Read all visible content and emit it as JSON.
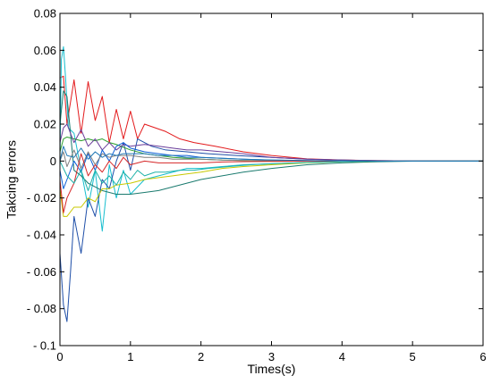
{
  "chart_data": {
    "type": "line",
    "title": "",
    "xlabel": "Times(s)",
    "ylabel": "Takcing errors",
    "xlim": [
      0,
      6
    ],
    "ylim": [
      -0.1,
      0.08
    ],
    "xticks": [
      0,
      1,
      2,
      3,
      4,
      5,
      6
    ],
    "xtick_labels": [
      "0",
      "1",
      "2",
      "3",
      "4",
      "5",
      "6"
    ],
    "yticks": [
      0.08,
      0.06,
      0.04,
      0.02,
      0,
      -0.02,
      -0.04,
      -0.06,
      -0.08,
      -0.1
    ],
    "ytick_labels": [
      "0.08",
      "0.06",
      "0.04",
      "0.02",
      "0",
      "- 0.02",
      "- 0.04",
      "- 0.06",
      "- 0.08",
      "- 0.1"
    ],
    "grid": false,
    "legend": "none",
    "series": [
      {
        "color": "#e31a1c",
        "x": [
          0,
          0.05,
          0.1,
          0.2,
          0.3,
          0.4,
          0.5,
          0.6,
          0.7,
          0.8,
          0.9,
          1.0,
          1.1,
          1.2,
          1.35,
          1.5,
          1.7,
          1.9,
          2.2,
          2.6,
          3.0,
          3.5,
          4.0,
          4.5,
          5.0,
          6.0
        ],
        "y": [
          0.045,
          0.046,
          0.02,
          0.044,
          0.015,
          0.043,
          0.022,
          0.035,
          0.01,
          0.028,
          0.012,
          0.027,
          0.012,
          0.02,
          0.018,
          0.016,
          0.012,
          0.01,
          0.008,
          0.005,
          0.003,
          0.0012,
          0.0006,
          0.0002,
          0.0001,
          0
        ]
      },
      {
        "color": "#17becf",
        "x": [
          0,
          0.02,
          0.05,
          0.08,
          0.12,
          0.2,
          0.3,
          0.4,
          0.5,
          0.6,
          0.7,
          0.8,
          0.9,
          1.0,
          1.2,
          1.4,
          1.6,
          1.8,
          2.0,
          2.3,
          2.6,
          3.0,
          3.5,
          4.0,
          4.5,
          5.0,
          6.0
        ],
        "y": [
          0.0,
          0.055,
          0.062,
          0.045,
          0.018,
          0.015,
          -0.005,
          -0.025,
          -0.005,
          -0.038,
          -0.002,
          -0.02,
          -0.005,
          -0.018,
          -0.01,
          -0.008,
          -0.006,
          -0.004,
          -0.004,
          -0.003,
          -0.002,
          -0.0015,
          -0.0008,
          -0.0003,
          -0.0001,
          0,
          0
        ]
      },
      {
        "color": "#1f4fa8",
        "x": [
          0,
          0.05,
          0.1,
          0.15,
          0.2,
          0.3,
          0.4,
          0.5,
          0.6,
          0.7,
          0.8,
          0.9,
          1.0,
          1.1,
          1.3,
          1.5,
          1.8,
          2.1,
          2.5,
          3.0,
          3.5,
          4.0,
          4.5,
          5.0,
          6.0
        ],
        "y": [
          -0.05,
          -0.078,
          -0.087,
          -0.06,
          -0.03,
          -0.05,
          -0.02,
          -0.03,
          -0.01,
          -0.015,
          0.0,
          0.01,
          -0.005,
          0.012,
          0.008,
          0.006,
          0.005,
          0.004,
          0.003,
          0.002,
          0.001,
          0.0005,
          0.0002,
          0.0001,
          0
        ]
      },
      {
        "color": "#2ca02c",
        "x": [
          0,
          0.05,
          0.1,
          0.2,
          0.3,
          0.4,
          0.5,
          0.6,
          0.7,
          0.8,
          1.0,
          1.2,
          1.4,
          1.6,
          1.8,
          2.0,
          2.3,
          2.6,
          3.0,
          3.5,
          4.0,
          4.5,
          5.0,
          6.0
        ],
        "y": [
          0.005,
          0.012,
          0.013,
          0.012,
          0.011,
          0.012,
          0.011,
          0.012,
          0.01,
          0.009,
          0.006,
          0.004,
          0.003,
          0.002,
          0.0015,
          0.001,
          0.0005,
          0.0003,
          0.0001,
          0,
          0,
          0,
          0,
          0
        ]
      },
      {
        "color": "#1a7a6e",
        "x": [
          0,
          0.05,
          0.1,
          0.2,
          0.3,
          0.4,
          0.5,
          0.6,
          0.7,
          0.8,
          0.9,
          1.0,
          1.2,
          1.4,
          1.6,
          1.8,
          2.0,
          2.3,
          2.6,
          3.0,
          3.5,
          4.0,
          4.5,
          5.0,
          6.0
        ],
        "y": [
          0.02,
          0.038,
          0.035,
          -0.005,
          -0.008,
          -0.012,
          -0.014,
          -0.016,
          -0.017,
          -0.018,
          -0.018,
          -0.018,
          -0.017,
          -0.016,
          -0.014,
          -0.012,
          -0.01,
          -0.008,
          -0.006,
          -0.004,
          -0.002,
          -0.001,
          -0.0004,
          -0.0001,
          0
        ]
      },
      {
        "color": "#c8c800",
        "x": [
          0,
          0.05,
          0.1,
          0.2,
          0.3,
          0.4,
          0.5,
          0.6,
          0.7,
          0.8,
          1.0,
          1.2,
          1.4,
          1.6,
          1.8,
          2.0,
          2.3,
          2.6,
          3.0,
          3.5,
          4.0,
          4.5,
          5.0,
          6.0
        ],
        "y": [
          -0.015,
          -0.03,
          -0.03,
          -0.025,
          -0.025,
          -0.02,
          -0.022,
          -0.015,
          -0.015,
          -0.013,
          -0.012,
          -0.01,
          -0.009,
          -0.008,
          -0.007,
          -0.006,
          -0.004,
          -0.003,
          -0.002,
          -0.001,
          -0.0004,
          -0.0001,
          0,
          0
        ]
      },
      {
        "color": "#6a3d9a",
        "x": [
          0,
          0.05,
          0.1,
          0.2,
          0.3,
          0.4,
          0.5,
          0.6,
          0.7,
          0.8,
          0.9,
          1.0,
          1.2,
          1.4,
          1.6,
          1.8,
          2.0,
          2.3,
          2.6,
          3.0,
          3.5,
          4.0,
          4.5,
          5.0,
          6.0
        ],
        "y": [
          0.01,
          0.018,
          0.02,
          0.01,
          0.017,
          0.008,
          0.012,
          0.006,
          0.01,
          0.006,
          0.009,
          0.008,
          0.009,
          0.008,
          0.007,
          0.006,
          0.006,
          0.005,
          0.004,
          0.002,
          0.001,
          0.0005,
          0.0002,
          0.0001,
          0
        ]
      },
      {
        "color": "#0b5ed7",
        "x": [
          0,
          0.05,
          0.1,
          0.2,
          0.3,
          0.4,
          0.5,
          0.6,
          0.7,
          0.8,
          0.9,
          1.0,
          1.2,
          1.4,
          1.6,
          1.8,
          2.0,
          2.3,
          2.6,
          3.0,
          3.5,
          4.0,
          4.5,
          5.0,
          6.0
        ],
        "y": [
          -0.005,
          -0.015,
          -0.01,
          0.0,
          -0.006,
          0.004,
          -0.005,
          0.006,
          0.0,
          0.008,
          0.01,
          0.007,
          0.005,
          0.004,
          0.003,
          0.003,
          0.002,
          0.0015,
          0.001,
          0.0005,
          0.0002,
          0.0001,
          0,
          0,
          0
        ]
      },
      {
        "color": "#7f7f7f",
        "x": [
          0,
          0.05,
          0.1,
          0.2,
          0.3,
          0.4,
          0.5,
          0.6,
          0.7,
          0.8,
          0.9,
          1.0,
          1.2,
          1.4,
          1.6,
          1.8,
          2.0,
          2.3,
          2.6,
          3.0,
          3.5,
          4.0,
          4.5,
          5.0,
          6.0
        ],
        "y": [
          0.0,
          0.005,
          -0.003,
          0.006,
          -0.004,
          0.005,
          -0.002,
          0.004,
          0.002,
          0.003,
          0.003,
          0.003,
          0.002,
          0.002,
          0.001,
          0.001,
          0.001,
          0.0005,
          0.0003,
          0.0002,
          0.0001,
          0,
          0,
          0,
          0
        ]
      },
      {
        "color": "#d62728",
        "x": [
          0,
          0.05,
          0.1,
          0.2,
          0.3,
          0.4,
          0.5,
          0.6,
          0.7,
          0.8,
          0.9,
          1.0,
          1.2,
          1.4,
          1.6,
          1.8,
          2.0,
          2.3,
          2.6,
          3.0,
          3.5,
          4.0,
          4.5,
          5.0,
          6.0
        ],
        "y": [
          -0.01,
          -0.028,
          -0.02,
          -0.012,
          0.004,
          -0.008,
          -0.002,
          -0.006,
          0.0,
          -0.004,
          0.002,
          -0.002,
          0.0,
          -0.001,
          -0.001,
          -0.001,
          -0.001,
          -0.0005,
          -0.0003,
          -0.0002,
          -0.0001,
          0,
          0,
          0,
          0
        ]
      },
      {
        "color": "#20b2aa",
        "x": [
          0,
          0.05,
          0.1,
          0.2,
          0.3,
          0.4,
          0.5,
          0.6,
          0.7,
          0.8,
          0.9,
          1.0,
          1.1,
          1.2,
          1.35,
          1.5,
          1.7,
          1.9,
          2.1,
          2.4,
          2.7,
          3.0,
          3.5,
          4.0,
          4.5,
          5.0,
          6.0
        ],
        "y": [
          0.0,
          -0.004,
          -0.008,
          -0.012,
          -0.005,
          -0.016,
          -0.005,
          -0.012,
          -0.008,
          -0.013,
          -0.006,
          -0.01,
          -0.005,
          -0.008,
          -0.006,
          -0.006,
          -0.005,
          -0.005,
          -0.004,
          -0.003,
          -0.002,
          -0.0015,
          -0.0008,
          -0.0003,
          -0.0001,
          0,
          0
        ]
      },
      {
        "color": "#1f77b4",
        "x": [
          0,
          0.05,
          0.1,
          0.2,
          0.3,
          0.4,
          0.5,
          0.6,
          0.7,
          0.8,
          0.9,
          1.0,
          1.2,
          1.4,
          1.6,
          1.8,
          2.0,
          2.3,
          2.6,
          3.0,
          3.5,
          4.0,
          4.5,
          5.0,
          6.0
        ],
        "y": [
          0.0,
          0.008,
          0.003,
          0.002,
          0.007,
          0.001,
          0.005,
          0.002,
          0.004,
          0.003,
          0.004,
          0.004,
          0.004,
          0.003,
          0.003,
          0.002,
          0.002,
          0.0015,
          0.001,
          0.0006,
          0.0003,
          0.0001,
          0,
          0,
          0
        ]
      }
    ]
  }
}
